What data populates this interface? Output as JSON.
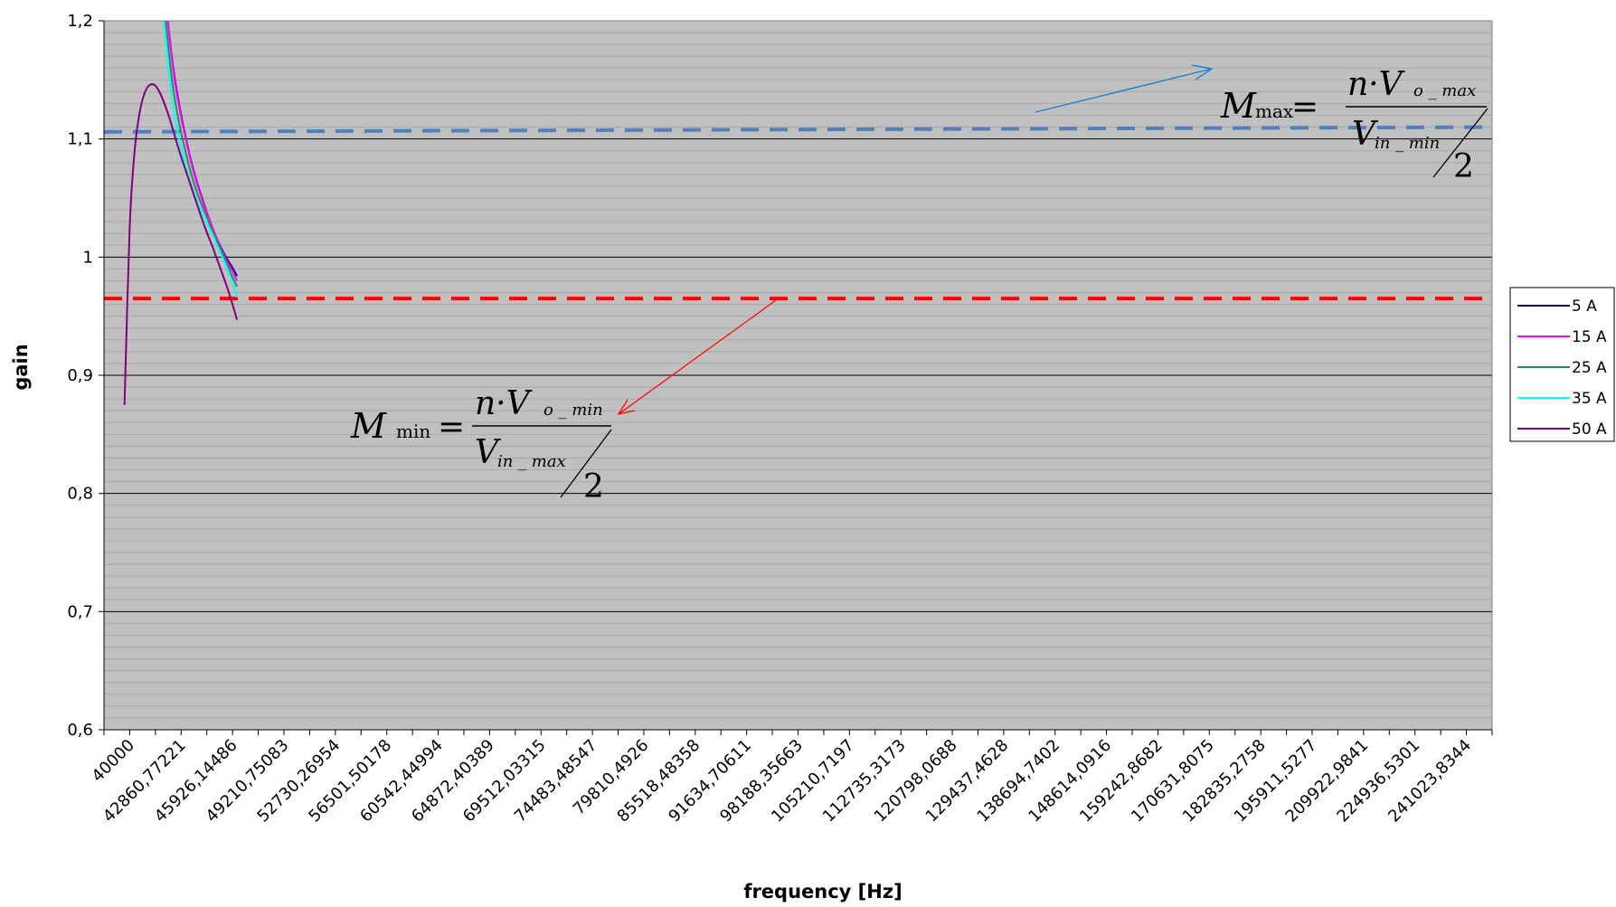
{
  "chart_data": {
    "type": "line",
    "title": "",
    "xlabel": "frequency [Hz]",
    "ylabel": "gain",
    "ylim": [
      0.6,
      1.2
    ],
    "ytick_labels": [
      "0,6",
      "0,7",
      "0,8",
      "0,9",
      "1",
      "1,1",
      "1,2"
    ],
    "yticks": [
      0.6,
      0.7,
      0.8,
      0.9,
      1.0,
      1.1,
      1.2
    ],
    "x_tick_labels": [
      "40000",
      "42860,77221",
      "45926,14486",
      "49210,75083",
      "52730,26954",
      "56501,50178",
      "60542,44994",
      "64872,40389",
      "69512,03315",
      "74483,48547",
      "79810,4926",
      "85518,48358",
      "91634,70611",
      "98188,35663",
      "105210,7197",
      "112735,3173",
      "120798,0688",
      "129437,4628",
      "138694,7402",
      "148614,0916",
      "159242,8682",
      "170631,8075",
      "182835,2758",
      "195911,5277",
      "209922,9841",
      "224936,5301",
      "241023,8344"
    ],
    "grid": "horizontal major and minor",
    "plot_background": "#c0c0c0",
    "legend_position": "right",
    "series": [
      {
        "name": "5 A",
        "color": "#000080",
        "x": [
          0.62,
          0.68,
          0.74,
          0.8,
          0.86,
          0.92,
          0.98,
          1.0,
          1.05,
          1.1,
          1.15,
          1.2,
          1.25,
          1.294
        ],
        "y": [
          1.2,
          1.156,
          1.125,
          1.099,
          1.077,
          1.059,
          1.043,
          1.038,
          1.026,
          1.015,
          1.006,
          0.998,
          0.991,
          0.984
        ]
      },
      {
        "name": "15 A",
        "color": "#ff00ff",
        "x": [
          0.62,
          0.68,
          0.74,
          0.8,
          0.86,
          0.92,
          0.98,
          1.0,
          1.05,
          1.1,
          1.15,
          1.2,
          1.25,
          1.294
        ],
        "y": [
          1.2,
          1.154,
          1.123,
          1.098,
          1.076,
          1.058,
          1.042,
          1.038,
          1.026,
          1.015,
          1.005,
          0.996,
          0.988,
          0.98
        ]
      },
      {
        "name": "25 A",
        "color": "#2e8b57",
        "x": [
          0.6,
          0.66,
          0.72,
          0.78,
          0.84,
          0.9,
          0.96,
          1.0,
          1.05,
          1.1,
          1.15,
          1.2,
          1.25,
          1.294
        ],
        "y": [
          1.2,
          1.151,
          1.118,
          1.094,
          1.073,
          1.056,
          1.042,
          1.034,
          1.023,
          1.013,
          1.003,
          0.993,
          0.983,
          0.975
        ]
      },
      {
        "name": "35 A",
        "color": "#00ffff",
        "x": [
          0.58,
          0.64,
          0.7,
          0.76,
          0.82,
          0.88,
          0.94,
          1.0,
          1.05,
          1.1,
          1.15,
          1.2,
          1.25,
          1.294
        ],
        "y": [
          1.2,
          1.148,
          1.113,
          1.089,
          1.069,
          1.053,
          1.04,
          1.029,
          1.02,
          1.01,
          1.0,
          0.99,
          0.978,
          0.966
        ]
      },
      {
        "name": "50 A",
        "color": "#800080",
        "x": [
          0.2,
          0.25,
          0.3,
          0.35,
          0.4,
          0.45,
          0.5,
          0.55,
          0.6,
          0.65,
          0.7,
          0.75,
          0.8,
          0.85,
          0.9,
          0.95,
          1.0,
          1.05,
          1.1,
          1.15,
          1.2,
          1.25,
          1.294
        ],
        "y": [
          0.875,
          1.025,
          1.092,
          1.124,
          1.14,
          1.146,
          1.145,
          1.138,
          1.127,
          1.114,
          1.099,
          1.085,
          1.072,
          1.059,
          1.046,
          1.033,
          1.021,
          1.01,
          0.998,
          0.986,
          0.974,
          0.96,
          0.947
        ]
      }
    ],
    "reference_lines": [
      {
        "y": 1.106,
        "y_right": 1.11,
        "color": "#4f81bd",
        "style": "dashed"
      },
      {
        "y": 0.965,
        "color": "#ff0000",
        "style": "dashed"
      }
    ]
  },
  "annotations": {
    "mmax": {
      "M": "M",
      "sub": "max",
      "eq": "=",
      "num": "n·V",
      "num_sub": "o _ max",
      "den": "V",
      "den_sub": "in _ min",
      "two": "2"
    },
    "mmin": {
      "M": "M",
      "sub": "min",
      "eq": "=",
      "num": "n·V",
      "num_sub": "o _ min",
      "den": "V",
      "den_sub": "in _ max",
      "two": "2"
    }
  },
  "colors": {
    "blue_arrow": "#1f7fd0",
    "red_arrow": "#ff0000"
  }
}
